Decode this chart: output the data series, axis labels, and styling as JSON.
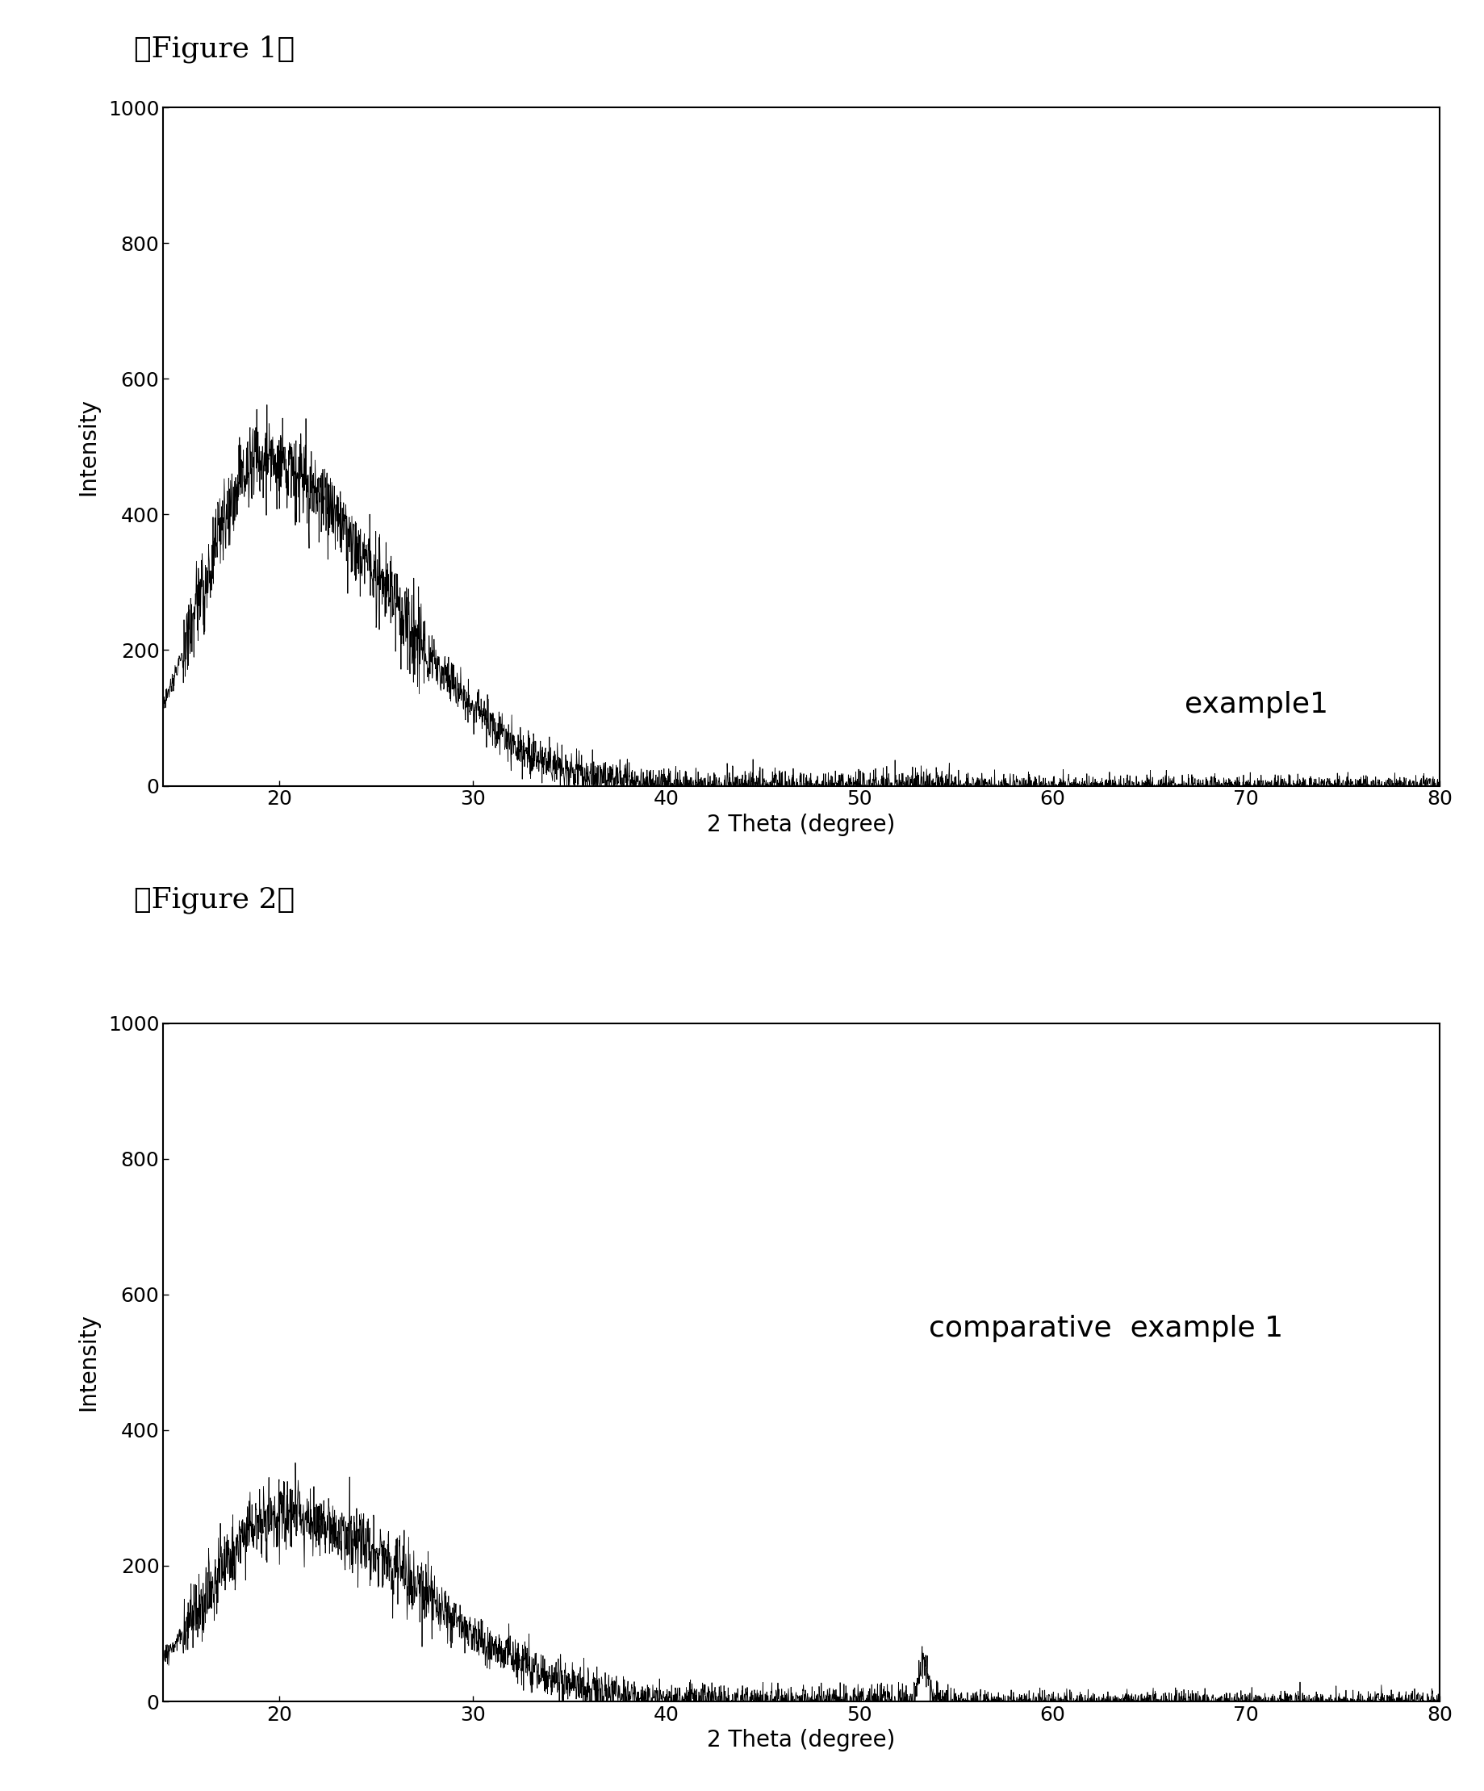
{
  "fig1_title": "【Figure 1】",
  "fig2_title": "【Figure 2】",
  "xlabel": "2 Theta (degree)",
  "ylabel": "Intensity",
  "xlim": [
    14,
    80
  ],
  "ylim1": [
    0,
    1000
  ],
  "ylim2": [
    0,
    1000
  ],
  "xticks": [
    20,
    30,
    40,
    50,
    60,
    70,
    80
  ],
  "yticks": [
    0,
    200,
    400,
    600,
    800,
    1000
  ],
  "label1": "example1",
  "label2": "comparative  example 1",
  "bg_color": "#ffffff",
  "line_color": "#000000",
  "font_size_title": 26,
  "font_size_label": 20,
  "font_size_tick": 18,
  "font_size_annot": 26
}
